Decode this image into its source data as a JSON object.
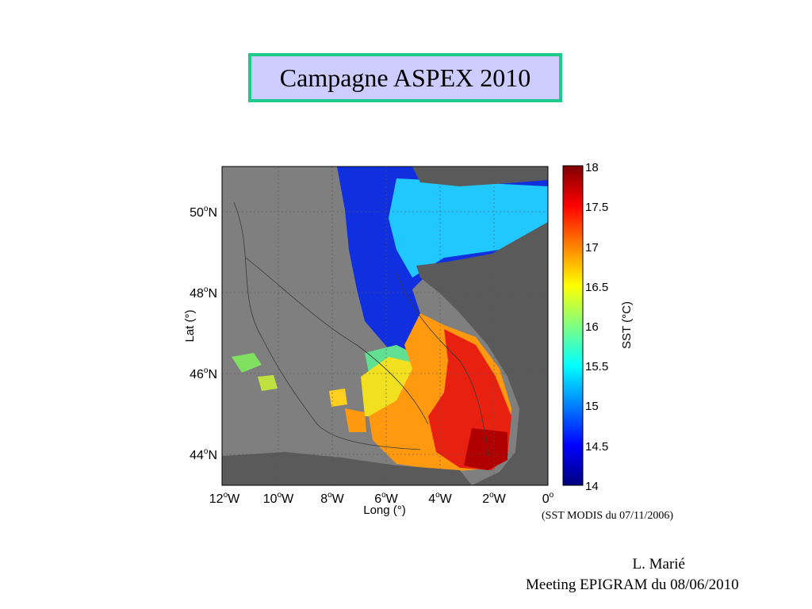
{
  "title": "Campagne ASPEX 2010",
  "map": {
    "xlabel": "Long (°)",
    "ylabel": "Lat (°)",
    "lat_ticks": [
      {
        "deg": "50",
        "hem": "N"
      },
      {
        "deg": "48",
        "hem": "N"
      },
      {
        "deg": "46",
        "hem": "N"
      },
      {
        "deg": "44",
        "hem": "N"
      }
    ],
    "lon_ticks": [
      {
        "deg": "12",
        "hem": "W"
      },
      {
        "deg": "10",
        "hem": "W"
      },
      {
        "deg": "8",
        "hem": "W"
      },
      {
        "deg": "6",
        "hem": "W"
      },
      {
        "deg": "4",
        "hem": "W"
      },
      {
        "deg": "2",
        "hem": "W"
      },
      {
        "deg": "0",
        "hem": ""
      }
    ],
    "colorbar": {
      "label": "SST (°C)",
      "ticks": [
        "18",
        "17.5",
        "17",
        "16.5",
        "16",
        "15.5",
        "15",
        "14.5",
        "14"
      ],
      "colors": [
        "#800000",
        "#ff0000",
        "#ff8000",
        "#ffff00",
        "#80ff80",
        "#00ffff",
        "#0080ff",
        "#0000ff",
        "#000080"
      ]
    },
    "land_color": "#5a5a5a",
    "nodata_color": "#7f7f7f"
  },
  "caption": "(SST MODIS du 07/11/2006)",
  "footer": {
    "author": "L. Marié",
    "meeting": "Meeting EPIGRAM du 08/06/2010"
  }
}
